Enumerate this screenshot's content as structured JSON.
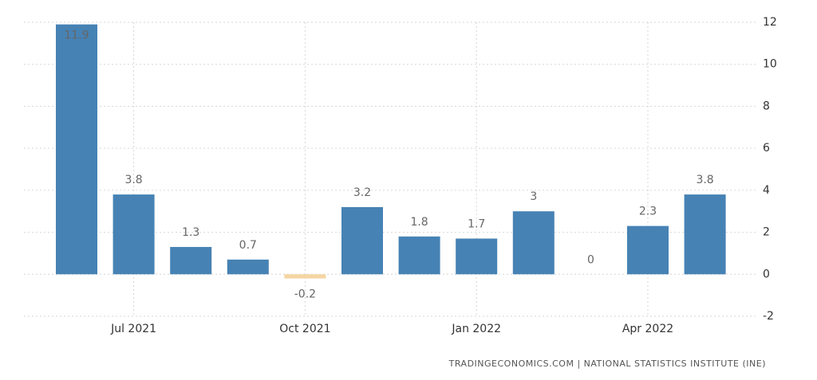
{
  "chart_data": {
    "type": "bar",
    "categories": [
      null,
      "Jul 2021",
      null,
      null,
      "Oct 2021",
      null,
      null,
      "Jan 2022",
      null,
      null,
      "Apr 2022",
      null
    ],
    "values": [
      11.9,
      3.8,
      1.3,
      0.7,
      -0.2,
      3.2,
      1.8,
      1.7,
      3,
      0,
      2.3,
      3.8
    ],
    "color": "#4682b4",
    "negative_color": "#f5d5a3",
    "ylim": [
      -2,
      12
    ],
    "yticks": [
      -2,
      0,
      2,
      4,
      6,
      8,
      10,
      12
    ],
    "grid": true,
    "source": "TRADINGECONOMICS.COM | NATIONAL STATISTICS INSTITUTE (INE)"
  }
}
